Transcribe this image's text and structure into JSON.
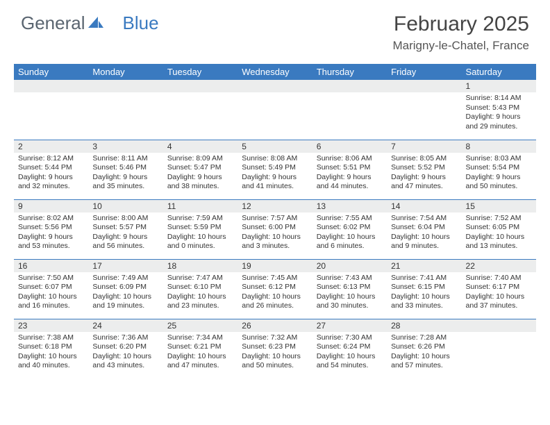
{
  "brand": {
    "part1": "General",
    "part2": "Blue"
  },
  "title": "February 2025",
  "location": "Marigny-le-Chatel, France",
  "colors": {
    "header_bg": "#3a7ac0",
    "header_text": "#ffffff",
    "daynum_bg": "#eceded",
    "cell_border": "#3a7ac0",
    "logo_gray": "#5a6570",
    "logo_blue": "#3a7ac0"
  },
  "layout": {
    "cols": 7,
    "rows": 5,
    "col_width_pct": 14.28
  },
  "weekdays": [
    "Sunday",
    "Monday",
    "Tuesday",
    "Wednesday",
    "Thursday",
    "Friday",
    "Saturday"
  ],
  "font": {
    "body_size": 10.5,
    "header_size": 13,
    "title_size": 30,
    "location_size": 17
  },
  "cells": [
    {
      "day": "",
      "l1": "",
      "l2": "",
      "l3": "",
      "l4": ""
    },
    {
      "day": "",
      "l1": "",
      "l2": "",
      "l3": "",
      "l4": ""
    },
    {
      "day": "",
      "l1": "",
      "l2": "",
      "l3": "",
      "l4": ""
    },
    {
      "day": "",
      "l1": "",
      "l2": "",
      "l3": "",
      "l4": ""
    },
    {
      "day": "",
      "l1": "",
      "l2": "",
      "l3": "",
      "l4": ""
    },
    {
      "day": "",
      "l1": "",
      "l2": "",
      "l3": "",
      "l4": ""
    },
    {
      "day": "1",
      "l1": "Sunrise: 8:14 AM",
      "l2": "Sunset: 5:43 PM",
      "l3": "Daylight: 9 hours",
      "l4": "and 29 minutes."
    },
    {
      "day": "2",
      "l1": "Sunrise: 8:12 AM",
      "l2": "Sunset: 5:44 PM",
      "l3": "Daylight: 9 hours",
      "l4": "and 32 minutes."
    },
    {
      "day": "3",
      "l1": "Sunrise: 8:11 AM",
      "l2": "Sunset: 5:46 PM",
      "l3": "Daylight: 9 hours",
      "l4": "and 35 minutes."
    },
    {
      "day": "4",
      "l1": "Sunrise: 8:09 AM",
      "l2": "Sunset: 5:47 PM",
      "l3": "Daylight: 9 hours",
      "l4": "and 38 minutes."
    },
    {
      "day": "5",
      "l1": "Sunrise: 8:08 AM",
      "l2": "Sunset: 5:49 PM",
      "l3": "Daylight: 9 hours",
      "l4": "and 41 minutes."
    },
    {
      "day": "6",
      "l1": "Sunrise: 8:06 AM",
      "l2": "Sunset: 5:51 PM",
      "l3": "Daylight: 9 hours",
      "l4": "and 44 minutes."
    },
    {
      "day": "7",
      "l1": "Sunrise: 8:05 AM",
      "l2": "Sunset: 5:52 PM",
      "l3": "Daylight: 9 hours",
      "l4": "and 47 minutes."
    },
    {
      "day": "8",
      "l1": "Sunrise: 8:03 AM",
      "l2": "Sunset: 5:54 PM",
      "l3": "Daylight: 9 hours",
      "l4": "and 50 minutes."
    },
    {
      "day": "9",
      "l1": "Sunrise: 8:02 AM",
      "l2": "Sunset: 5:56 PM",
      "l3": "Daylight: 9 hours",
      "l4": "and 53 minutes."
    },
    {
      "day": "10",
      "l1": "Sunrise: 8:00 AM",
      "l2": "Sunset: 5:57 PM",
      "l3": "Daylight: 9 hours",
      "l4": "and 56 minutes."
    },
    {
      "day": "11",
      "l1": "Sunrise: 7:59 AM",
      "l2": "Sunset: 5:59 PM",
      "l3": "Daylight: 10 hours",
      "l4": "and 0 minutes."
    },
    {
      "day": "12",
      "l1": "Sunrise: 7:57 AM",
      "l2": "Sunset: 6:00 PM",
      "l3": "Daylight: 10 hours",
      "l4": "and 3 minutes."
    },
    {
      "day": "13",
      "l1": "Sunrise: 7:55 AM",
      "l2": "Sunset: 6:02 PM",
      "l3": "Daylight: 10 hours",
      "l4": "and 6 minutes."
    },
    {
      "day": "14",
      "l1": "Sunrise: 7:54 AM",
      "l2": "Sunset: 6:04 PM",
      "l3": "Daylight: 10 hours",
      "l4": "and 9 minutes."
    },
    {
      "day": "15",
      "l1": "Sunrise: 7:52 AM",
      "l2": "Sunset: 6:05 PM",
      "l3": "Daylight: 10 hours",
      "l4": "and 13 minutes."
    },
    {
      "day": "16",
      "l1": "Sunrise: 7:50 AM",
      "l2": "Sunset: 6:07 PM",
      "l3": "Daylight: 10 hours",
      "l4": "and 16 minutes."
    },
    {
      "day": "17",
      "l1": "Sunrise: 7:49 AM",
      "l2": "Sunset: 6:09 PM",
      "l3": "Daylight: 10 hours",
      "l4": "and 19 minutes."
    },
    {
      "day": "18",
      "l1": "Sunrise: 7:47 AM",
      "l2": "Sunset: 6:10 PM",
      "l3": "Daylight: 10 hours",
      "l4": "and 23 minutes."
    },
    {
      "day": "19",
      "l1": "Sunrise: 7:45 AM",
      "l2": "Sunset: 6:12 PM",
      "l3": "Daylight: 10 hours",
      "l4": "and 26 minutes."
    },
    {
      "day": "20",
      "l1": "Sunrise: 7:43 AM",
      "l2": "Sunset: 6:13 PM",
      "l3": "Daylight: 10 hours",
      "l4": "and 30 minutes."
    },
    {
      "day": "21",
      "l1": "Sunrise: 7:41 AM",
      "l2": "Sunset: 6:15 PM",
      "l3": "Daylight: 10 hours",
      "l4": "and 33 minutes."
    },
    {
      "day": "22",
      "l1": "Sunrise: 7:40 AM",
      "l2": "Sunset: 6:17 PM",
      "l3": "Daylight: 10 hours",
      "l4": "and 37 minutes."
    },
    {
      "day": "23",
      "l1": "Sunrise: 7:38 AM",
      "l2": "Sunset: 6:18 PM",
      "l3": "Daylight: 10 hours",
      "l4": "and 40 minutes."
    },
    {
      "day": "24",
      "l1": "Sunrise: 7:36 AM",
      "l2": "Sunset: 6:20 PM",
      "l3": "Daylight: 10 hours",
      "l4": "and 43 minutes."
    },
    {
      "day": "25",
      "l1": "Sunrise: 7:34 AM",
      "l2": "Sunset: 6:21 PM",
      "l3": "Daylight: 10 hours",
      "l4": "and 47 minutes."
    },
    {
      "day": "26",
      "l1": "Sunrise: 7:32 AM",
      "l2": "Sunset: 6:23 PM",
      "l3": "Daylight: 10 hours",
      "l4": "and 50 minutes."
    },
    {
      "day": "27",
      "l1": "Sunrise: 7:30 AM",
      "l2": "Sunset: 6:24 PM",
      "l3": "Daylight: 10 hours",
      "l4": "and 54 minutes."
    },
    {
      "day": "28",
      "l1": "Sunrise: 7:28 AM",
      "l2": "Sunset: 6:26 PM",
      "l3": "Daylight: 10 hours",
      "l4": "and 57 minutes."
    },
    {
      "day": "",
      "l1": "",
      "l2": "",
      "l3": "",
      "l4": ""
    }
  ]
}
